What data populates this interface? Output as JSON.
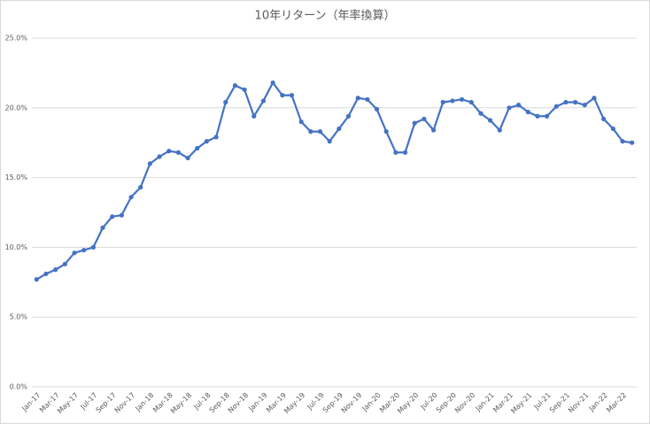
{
  "chart_data": {
    "type": "line",
    "title": "10年リターン（年率換算）",
    "categories": [
      "Jan-17",
      null,
      "Mar-17",
      null,
      "May-17",
      null,
      "Jul-17",
      null,
      "Sep-17",
      null,
      "Nov-17",
      null,
      "Jan-18",
      null,
      "Mar-18",
      null,
      "May-18",
      null,
      "Jul-18",
      null,
      "Sep-18",
      null,
      "Nov-18",
      null,
      "Jan-19",
      null,
      "Mar-19",
      null,
      "May-19",
      null,
      "Jul-19",
      null,
      "Sep-19",
      null,
      "Nov-19",
      null,
      "Jan-20",
      null,
      "Mar-20",
      null,
      "May-20",
      null,
      "Jul-20",
      null,
      "Sep-20",
      null,
      "Nov-20",
      null,
      "Jan-21",
      null,
      "Mar-21",
      null,
      "May-21",
      null,
      "Jul-21",
      null,
      "Sep-21",
      null,
      "Nov-21",
      null,
      "Jan-22",
      null,
      "Mar-22",
      null
    ],
    "values": [
      7.7,
      8.1,
      8.4,
      8.8,
      9.6,
      9.8,
      10.0,
      11.4,
      12.2,
      12.3,
      13.6,
      14.3,
      16.0,
      16.5,
      16.9,
      16.8,
      16.4,
      17.1,
      17.6,
      17.9,
      20.4,
      21.6,
      21.3,
      19.4,
      20.5,
      21.8,
      20.9,
      20.9,
      19.0,
      18.3,
      18.3,
      17.6,
      18.5,
      19.4,
      20.7,
      20.6,
      19.9,
      18.3,
      16.8,
      16.8,
      18.9,
      19.2,
      18.4,
      20.4,
      20.5,
      20.6,
      20.4,
      19.6,
      19.1,
      18.4,
      20.0,
      20.2,
      19.7,
      19.4,
      19.4,
      20.1,
      20.4,
      20.4,
      20.2,
      20.7,
      19.2,
      18.5,
      17.6,
      17.5
    ],
    "color": "#4472c4",
    "ylim": [
      0,
      25
    ],
    "yticks": [
      {
        "value": 0,
        "label": "0.0%"
      },
      {
        "value": 5,
        "label": "5.0%"
      },
      {
        "value": 10,
        "label": "10.0%"
      },
      {
        "value": 15,
        "label": "15.0%"
      },
      {
        "value": 20,
        "label": "20.0%"
      },
      {
        "value": 25,
        "label": "25.0%"
      }
    ],
    "grid": true
  }
}
